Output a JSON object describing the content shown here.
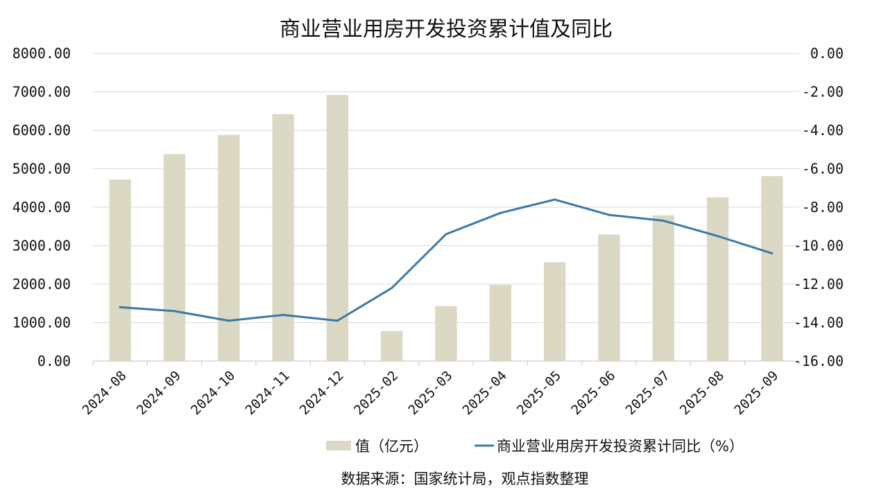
{
  "chart_data": {
    "type": "bar",
    "title": "商业营业用房开发投资累计值及同比",
    "categories": [
      "2024-08",
      "2024-09",
      "2024-10",
      "2024-11",
      "2024-12",
      "2025-02",
      "2025-03",
      "2025-04",
      "2025-05",
      "2025-06",
      "2025-07",
      "2025-08",
      "2025-09"
    ],
    "series": [
      {
        "name": "值（亿元）",
        "type": "bar",
        "axis": "left",
        "color": "#dbd9c3",
        "values": [
          4720,
          5380,
          5880,
          6420,
          6920,
          780,
          1430,
          1980,
          2570,
          3290,
          3790,
          4260,
          4810
        ]
      },
      {
        "name": "商业营业用房开发投资累计同比（%）",
        "type": "line",
        "axis": "right",
        "color": "#3a79a8",
        "values": [
          -13.2,
          -13.4,
          -13.9,
          -13.6,
          -13.9,
          -12.2,
          -9.4,
          -8.3,
          -7.6,
          -8.4,
          -8.7,
          -9.5,
          -10.4
        ]
      }
    ],
    "y_left": {
      "min": 0,
      "max": 8000,
      "step": 1000,
      "tick_labels": [
        "0.00",
        "1000.00",
        "2000.00",
        "3000.00",
        "4000.00",
        "5000.00",
        "6000.00",
        "7000.00",
        "8000.00"
      ]
    },
    "y_right": {
      "min": -16,
      "max": 0,
      "step": 2,
      "tick_labels": [
        "-16.00",
        "-14.00",
        "-12.00",
        "-10.00",
        "-8.00",
        "-6.00",
        "-4.00",
        "-2.00",
        "0.00"
      ]
    },
    "grid": true,
    "legend_position": "bottom",
    "source": "数据来源：国家统计局，观点指数整理"
  }
}
